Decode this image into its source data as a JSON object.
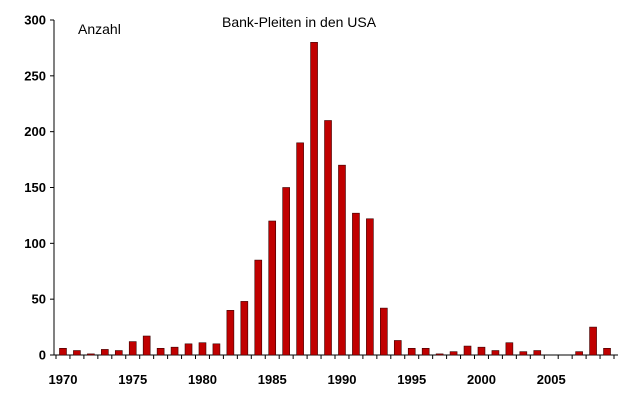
{
  "chart_data": {
    "type": "bar",
    "title": "Bank-Pleiten in den USA",
    "ylabel": "Anzahl",
    "xlabel": "",
    "ylim": [
      0,
      300
    ],
    "y_ticks": [
      0,
      50,
      100,
      150,
      200,
      250,
      300
    ],
    "x_tick_labels": [
      "1970",
      "1975",
      "1980",
      "1985",
      "1990",
      "1995",
      "2000",
      "2005"
    ],
    "categories": [
      1970,
      1971,
      1972,
      1973,
      1974,
      1975,
      1976,
      1977,
      1978,
      1979,
      1980,
      1981,
      1982,
      1983,
      1984,
      1985,
      1986,
      1987,
      1988,
      1989,
      1990,
      1991,
      1992,
      1993,
      1994,
      1995,
      1996,
      1997,
      1998,
      1999,
      2000,
      2001,
      2002,
      2003,
      2004,
      2005,
      2006,
      2007,
      2008,
      2009
    ],
    "values": [
      6,
      4,
      1,
      5,
      4,
      12,
      17,
      6,
      7,
      10,
      11,
      10,
      40,
      48,
      85,
      120,
      150,
      190,
      280,
      210,
      170,
      127,
      122,
      42,
      13,
      6,
      6,
      1,
      3,
      8,
      7,
      4,
      11,
      3,
      4,
      0,
      0,
      3,
      25,
      6
    ],
    "bar_color": "#c00000",
    "grid": false,
    "legend": "none"
  }
}
